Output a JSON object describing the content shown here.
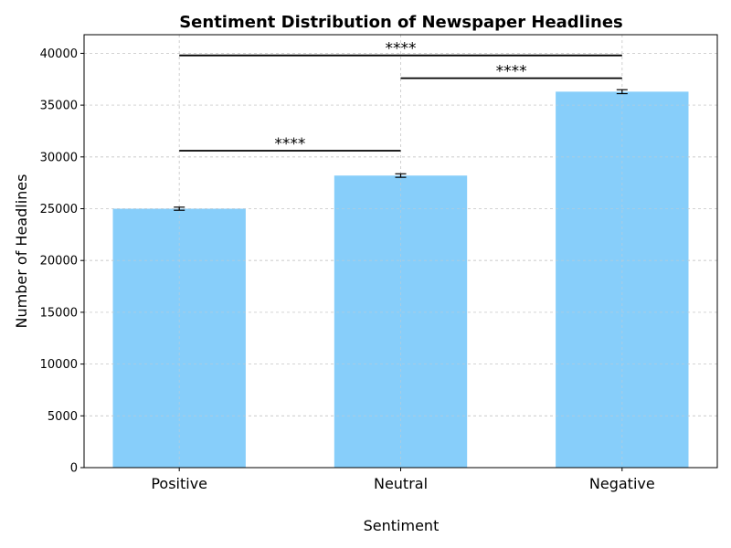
{
  "chart_data": {
    "type": "bar",
    "title": "Sentiment Distribution of Newspaper Headlines",
    "xlabel": "Sentiment",
    "ylabel": "Number of Headlines",
    "categories": [
      "Positive",
      "Neutral",
      "Negative"
    ],
    "values": [
      25000,
      28200,
      36300
    ],
    "error": [
      150,
      170,
      190
    ],
    "ylim": [
      0,
      41800
    ],
    "yticks": [
      0,
      5000,
      10000,
      15000,
      20000,
      25000,
      30000,
      35000,
      40000
    ],
    "ytick_labels": [
      "0",
      "5000",
      "10000",
      "15000",
      "20000",
      "25000",
      "30000",
      "35000",
      "40000"
    ],
    "grid": true,
    "bar_color": "#87CEFA",
    "significance": [
      {
        "from": 0,
        "to": 1,
        "y": 30600,
        "label": "****"
      },
      {
        "from": 1,
        "to": 2,
        "y": 37600,
        "label": "****"
      },
      {
        "from": 0,
        "to": 2,
        "y": 39800,
        "label": "****"
      }
    ]
  }
}
